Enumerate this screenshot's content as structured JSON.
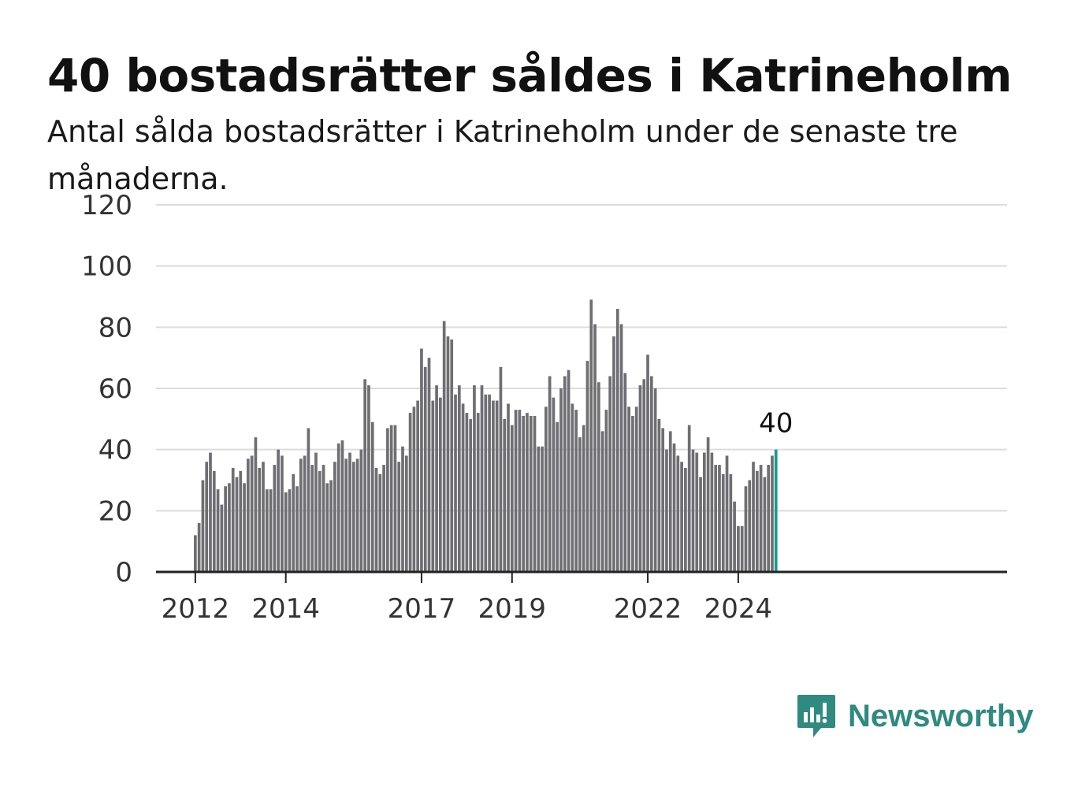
{
  "title": "40 bostadsrätter såldes i Katrineholm",
  "subtitle": "Antal sålda bostadsrätter i Katrineholm under de senaste tre månaderna.",
  "brand": {
    "name": "Newsworthy",
    "color": "#2f8a80",
    "icon": "newsworthy-logo-icon"
  },
  "colors": {
    "bar": "#6e6e73",
    "highlight": "#159a8f",
    "grid": "#dcdcdc"
  },
  "chart_data": {
    "type": "bar",
    "title": "40 bostadsrätter såldes i Katrineholm",
    "xlabel": "",
    "ylabel": "",
    "ylim": [
      0,
      120
    ],
    "yticks": [
      0,
      20,
      40,
      60,
      80,
      100,
      120
    ],
    "x_tick_labels": [
      "2012",
      "2014",
      "2017",
      "2019",
      "2022",
      "2024"
    ],
    "grid": true,
    "start": "2012-01",
    "frequency": "monthly",
    "highlight_last": true,
    "last_value_label": "40",
    "values": [
      12,
      16,
      30,
      36,
      39,
      33,
      27,
      22,
      28,
      29,
      34,
      31,
      33,
      29,
      37,
      38,
      44,
      34,
      36,
      27,
      27,
      35,
      40,
      38,
      26,
      27,
      32,
      28,
      37,
      38,
      47,
      35,
      39,
      33,
      35,
      29,
      30,
      36,
      42,
      43,
      37,
      39,
      36,
      37,
      40,
      63,
      61,
      49,
      34,
      32,
      35,
      47,
      48,
      48,
      36,
      41,
      38,
      52,
      54,
      56,
      73,
      67,
      70,
      56,
      61,
      57,
      82,
      77,
      76,
      58,
      61,
      55,
      52,
      50,
      61,
      52,
      61,
      58,
      58,
      56,
      56,
      67,
      50,
      55,
      48,
      53,
      53,
      51,
      52,
      51,
      51,
      41,
      41,
      54,
      64,
      57,
      49,
      60,
      64,
      66,
      55,
      53,
      44,
      48,
      69,
      89,
      81,
      62,
      46,
      53,
      64,
      77,
      86,
      81,
      65,
      54,
      51,
      54,
      61,
      63,
      71,
      64,
      60,
      50,
      47,
      40,
      46,
      42,
      38,
      36,
      34,
      48,
      40,
      39,
      31,
      39,
      44,
      39,
      35,
      35,
      32,
      38,
      32,
      23,
      15,
      15,
      28,
      30,
      36,
      33,
      35,
      31,
      35,
      38,
      40
    ]
  }
}
